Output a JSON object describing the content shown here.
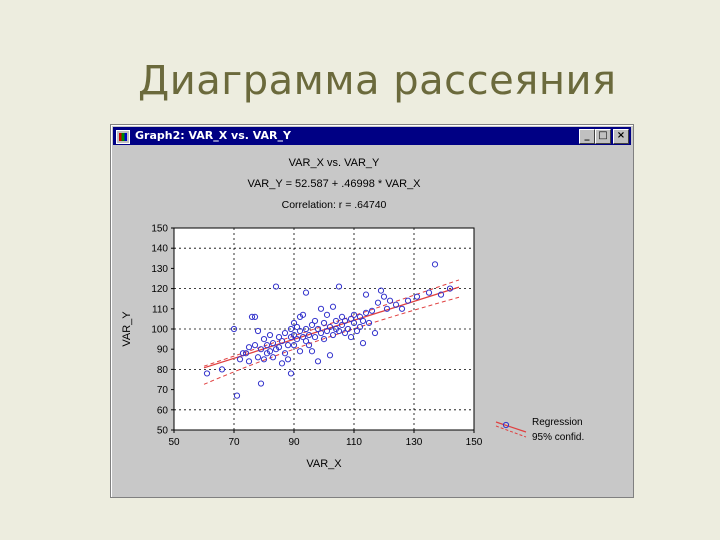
{
  "slide": {
    "title": "Диаграмма рассеяния"
  },
  "window": {
    "title": "Graph2:  VAR_X vs.  VAR_Y",
    "min_glyph": "_",
    "max_glyph": "□",
    "close_glyph": "×"
  },
  "chart_data": {
    "type": "scatter",
    "title": "VAR_X vs. VAR_Y",
    "subtitle": "VAR_Y = 52.587  +  .46998 * VAR_X",
    "annotation": "Correlation: r = .64740",
    "xlabel": "VAR_X",
    "ylabel": "VAR_Y",
    "xlim": [
      50,
      150
    ],
    "ylim": [
      50,
      150
    ],
    "xticks": [
      50,
      70,
      90,
      110,
      130,
      150
    ],
    "yticks": [
      50,
      60,
      70,
      80,
      90,
      100,
      110,
      120,
      130,
      140,
      150
    ],
    "grid": true,
    "legend_position": "bottom-right-outside",
    "legend": [
      "Regression",
      "95% confid."
    ],
    "colors": {
      "points": "#3333cc",
      "regression": "#e04040",
      "confidence": "#e04040"
    },
    "regression": {
      "intercept": 52.587,
      "slope": 0.46998
    },
    "confidence_band": {
      "lower": [
        [
          60,
          72.6
        ],
        [
          95,
          95.0
        ],
        [
          145,
          115.7
        ]
      ],
      "upper": [
        [
          60,
          81.6
        ],
        [
          95,
          99.0
        ],
        [
          145,
          124.3
        ]
      ]
    },
    "points": [
      [
        61,
        78
      ],
      [
        66,
        80
      ],
      [
        70,
        100
      ],
      [
        71,
        67
      ],
      [
        72,
        85
      ],
      [
        73,
        88
      ],
      [
        74,
        88
      ],
      [
        75,
        91
      ],
      [
        75,
        84
      ],
      [
        76,
        106
      ],
      [
        77,
        106
      ],
      [
        77,
        92
      ],
      [
        78,
        99
      ],
      [
        78,
        86
      ],
      [
        79,
        73
      ],
      [
        79,
        90
      ],
      [
        80,
        85
      ],
      [
        80,
        95
      ],
      [
        81,
        88
      ],
      [
        81,
        92
      ],
      [
        82,
        89
      ],
      [
        82,
        97
      ],
      [
        83,
        86
      ],
      [
        83,
        93
      ],
      [
        84,
        121
      ],
      [
        84,
        90
      ],
      [
        85,
        91
      ],
      [
        85,
        96
      ],
      [
        86,
        83
      ],
      [
        86,
        94
      ],
      [
        87,
        88
      ],
      [
        87,
        98
      ],
      [
        88,
        92
      ],
      [
        88,
        85
      ],
      [
        89,
        100
      ],
      [
        89,
        96
      ],
      [
        89,
        78
      ],
      [
        90,
        103
      ],
      [
        90,
        97
      ],
      [
        90,
        92
      ],
      [
        91,
        101
      ],
      [
        91,
        95
      ],
      [
        92,
        106
      ],
      [
        92,
        99
      ],
      [
        92,
        89
      ],
      [
        93,
        107
      ],
      [
        93,
        96
      ],
      [
        94,
        118
      ],
      [
        94,
        100
      ],
      [
        94,
        94
      ],
      [
        95,
        97
      ],
      [
        95,
        92
      ],
      [
        96,
        102
      ],
      [
        96,
        89
      ],
      [
        97,
        104
      ],
      [
        97,
        96
      ],
      [
        98,
        100
      ],
      [
        98,
        84
      ],
      [
        99,
        110
      ],
      [
        99,
        98
      ],
      [
        100,
        103
      ],
      [
        100,
        95
      ],
      [
        101,
        99
      ],
      [
        101,
        107
      ],
      [
        102,
        87
      ],
      [
        102,
        101
      ],
      [
        103,
        111
      ],
      [
        103,
        97
      ],
      [
        104,
        104
      ],
      [
        104,
        100
      ],
      [
        105,
        99
      ],
      [
        105,
        121
      ],
      [
        106,
        106
      ],
      [
        106,
        102
      ],
      [
        107,
        98
      ],
      [
        107,
        104
      ],
      [
        108,
        100
      ],
      [
        109,
        105
      ],
      [
        109,
        96
      ],
      [
        110,
        103
      ],
      [
        110,
        107
      ],
      [
        111,
        99
      ],
      [
        112,
        106
      ],
      [
        112,
        101
      ],
      [
        113,
        93
      ],
      [
        113,
        104
      ],
      [
        114,
        117
      ],
      [
        114,
        108
      ],
      [
        115,
        103
      ],
      [
        116,
        109
      ],
      [
        117,
        98
      ],
      [
        118,
        113
      ],
      [
        119,
        119
      ],
      [
        120,
        116
      ],
      [
        121,
        110
      ],
      [
        122,
        114
      ],
      [
        124,
        112
      ],
      [
        126,
        110
      ],
      [
        128,
        114
      ],
      [
        131,
        116
      ],
      [
        135,
        118
      ],
      [
        137,
        132
      ],
      [
        139,
        117
      ],
      [
        142,
        120
      ]
    ]
  }
}
